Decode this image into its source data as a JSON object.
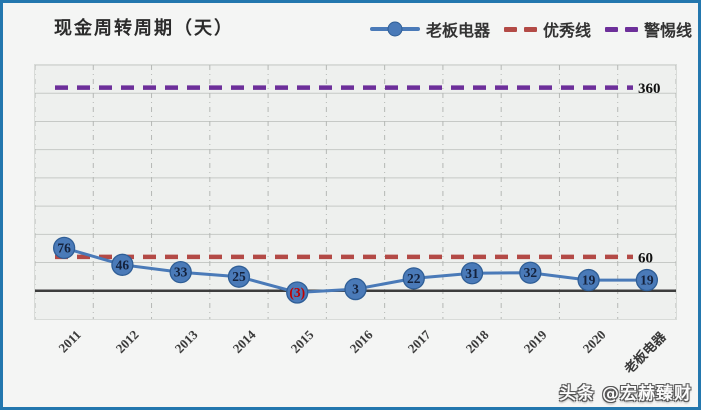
{
  "title": "现金周转周期（天）",
  "watermark": "头条 @宏赫臻财",
  "legend": {
    "items": [
      {
        "label": "老板电器",
        "type": "line-marker",
        "color": "#4a7ab8"
      },
      {
        "label": "优秀线",
        "type": "dashed",
        "color": "#b34a46"
      },
      {
        "label": "警惕线",
        "type": "dashed",
        "color": "#6d2f9a"
      }
    ]
  },
  "chart_data": {
    "type": "line",
    "title": "现金周转周期（天）",
    "categories": [
      "2011",
      "2012",
      "2013",
      "2014",
      "2015",
      "2016",
      "2017",
      "2018",
      "2019",
      "2020",
      "老板电器"
    ],
    "series": [
      {
        "name": "老板电器",
        "values": [
          76,
          46,
          33,
          25,
          -3,
          3,
          22,
          31,
          32,
          19,
          19
        ],
        "labels": [
          "76",
          "46",
          "33",
          "25",
          "(3)",
          "3",
          "22",
          "31",
          "32",
          "19",
          "19"
        ],
        "color": "#4a7ab8",
        "marker_edge_color": "#2f5e96"
      }
    ],
    "reference_lines": [
      {
        "name": "优秀线",
        "value": 60,
        "label": "60",
        "color": "#b34a46",
        "style": "dashed"
      },
      {
        "name": "警惕线",
        "value": 360,
        "label": "360",
        "color": "#6d2f9a",
        "style": "dashed"
      }
    ],
    "y_axis": {
      "min": -50,
      "max": 400,
      "gridline_step": 50
    },
    "colors": {
      "zero_line": "#3d3d3d",
      "grid_horizontal": "#c6c9c6",
      "grid_vertical": "#b5b8b5",
      "marker_label": "#14223d",
      "negative_label": "#c00000",
      "ref_label": "#111111"
    },
    "grid": {
      "horizontal": true,
      "vertical": true
    },
    "legend_position": "top-right"
  }
}
